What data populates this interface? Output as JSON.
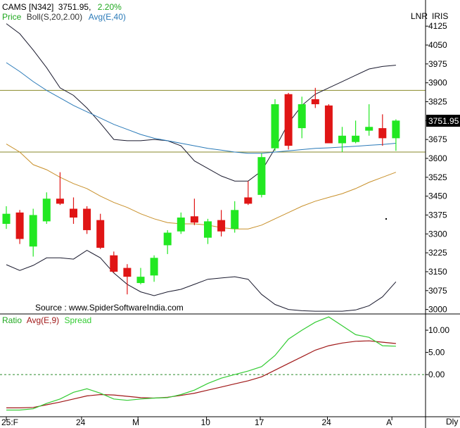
{
  "header": {
    "symbol": "CAMS [N342]",
    "last_price": "3751.95,",
    "change_pct": "2.20%",
    "legend_price": "Price",
    "legend_boll": "Boll(S,20,2.00)",
    "legend_avg": "Avg(E,40)",
    "right_label_1": "LNR",
    "right_label_2": "IRIS",
    "price_tag": "3751.95"
  },
  "source_text": "Source : www.SpiderSoftwareIndia.com",
  "lower_legend": {
    "ratio": "Ratio",
    "avg": "Avg(E,9)",
    "spread": "Spread"
  },
  "x_axis": {
    "labels": [
      {
        "text": "25:F",
        "index": 0
      },
      {
        "text": "24",
        "index": 5.6
      },
      {
        "text": "M",
        "index": 9.8
      },
      {
        "text": "10",
        "index": 14.9
      },
      {
        "text": "17",
        "index": 18.9
      },
      {
        "text": "24",
        "index": 23.9
      },
      {
        "text": "A",
        "index": 28.7
      }
    ],
    "period": "Dly"
  },
  "colors": {
    "up": "#22e822",
    "down": "#e01515",
    "boll": "#1a1a2e",
    "boll_mid": "#c8902a",
    "avg40": "#2a7ab8",
    "hline": "#8a8a2a",
    "ratio_avg": "#a01818",
    "spread": "#33cc33",
    "zero_line": "#2a8a2a",
    "accent_green": "#1fa81f",
    "accent_blue": "#2a7ab8"
  },
  "chart_data": [
    {
      "type": "candlestick",
      "title": "CAMS [N342]",
      "ylim": [
        2985,
        4145
      ],
      "y_ticks": [
        3000,
        3075,
        3150,
        3225,
        3300,
        3375,
        3450,
        3525,
        3600,
        3675,
        3750,
        3825,
        3900,
        3975,
        4050,
        4125
      ],
      "horizontal_lines": [
        3870,
        3625
      ],
      "candles": [
        {
          "o": 3340,
          "h": 3410,
          "l": 3320,
          "c": 3380
        },
        {
          "o": 3385,
          "h": 3395,
          "l": 3260,
          "c": 3280
        },
        {
          "o": 3250,
          "h": 3400,
          "l": 3210,
          "c": 3375
        },
        {
          "o": 3350,
          "h": 3465,
          "l": 3340,
          "c": 3440
        },
        {
          "o": 3440,
          "h": 3545,
          "l": 3415,
          "c": 3420
        },
        {
          "o": 3400,
          "h": 3445,
          "l": 3340,
          "c": 3365
        },
        {
          "o": 3400,
          "h": 3410,
          "l": 3300,
          "c": 3315
        },
        {
          "o": 3355,
          "h": 3380,
          "l": 3240,
          "c": 3245
        },
        {
          "o": 3215,
          "h": 3230,
          "l": 3145,
          "c": 3150
        },
        {
          "o": 3165,
          "h": 3180,
          "l": 3060,
          "c": 3130
        },
        {
          "o": 3105,
          "h": 3165,
          "l": 3100,
          "c": 3130
        },
        {
          "o": 3135,
          "h": 3215,
          "l": 3110,
          "c": 3205
        },
        {
          "o": 3255,
          "h": 3315,
          "l": 3220,
          "c": 3305
        },
        {
          "o": 3310,
          "h": 3385,
          "l": 3300,
          "c": 3365
        },
        {
          "o": 3370,
          "h": 3440,
          "l": 3335,
          "c": 3345
        },
        {
          "o": 3285,
          "h": 3360,
          "l": 3260,
          "c": 3350
        },
        {
          "o": 3355,
          "h": 3395,
          "l": 3290,
          "c": 3310
        },
        {
          "o": 3320,
          "h": 3430,
          "l": 3305,
          "c": 3395
        },
        {
          "o": 3445,
          "h": 3510,
          "l": 3415,
          "c": 3420
        },
        {
          "o": 3455,
          "h": 3620,
          "l": 3445,
          "c": 3605
        },
        {
          "o": 3640,
          "h": 3835,
          "l": 3630,
          "c": 3815
        },
        {
          "o": 3855,
          "h": 3860,
          "l": 3635,
          "c": 3650
        },
        {
          "o": 3720,
          "h": 3845,
          "l": 3680,
          "c": 3815
        },
        {
          "o": 3835,
          "h": 3880,
          "l": 3800,
          "c": 3815
        },
        {
          "o": 3810,
          "h": 3815,
          "l": 3660,
          "c": 3660
        },
        {
          "o": 3660,
          "h": 3725,
          "l": 3625,
          "c": 3690
        },
        {
          "o": 3665,
          "h": 3750,
          "l": 3660,
          "c": 3690
        },
        {
          "o": 3710,
          "h": 3815,
          "l": 3690,
          "c": 3725
        },
        {
          "o": 3720,
          "h": 3775,
          "l": 3650,
          "c": 3680
        },
        {
          "o": 3680,
          "h": 3755,
          "l": 3630,
          "c": 3750
        }
      ],
      "series": [
        {
          "name": "Boll(S,20,2.00)",
          "values": [
            4135,
            4095,
            4030,
            3960,
            3880,
            3850,
            3800,
            3740,
            3675,
            3670,
            3670,
            3675,
            3670,
            3650,
            3590,
            3560,
            3530,
            3510,
            3510,
            3550,
            3640,
            3740,
            3810,
            3855,
            3880,
            3905,
            3930,
            3955,
            3965,
            3970
          ]
        },
        {
          "name": "Boll(S,20,2.00)",
          "values": [
            3178,
            3155,
            3175,
            3205,
            3205,
            3200,
            3235,
            3205,
            3145,
            3100,
            3070,
            3055,
            3070,
            3080,
            3100,
            3120,
            3125,
            3130,
            3120,
            3060,
            3020,
            3000,
            2995,
            2993,
            2993,
            2993,
            2998,
            3015,
            3050,
            3110
          ]
        },
        {
          "name": "Boll(S,20,2.00)",
          "values": [
            3657,
            3625,
            3575,
            3555,
            3525,
            3500,
            3480,
            3450,
            3425,
            3405,
            3380,
            3360,
            3345,
            3340,
            3340,
            3335,
            3325,
            3320,
            3320,
            3335,
            3360,
            3385,
            3410,
            3430,
            3445,
            3460,
            3480,
            3505,
            3525,
            3545
          ]
        },
        {
          "name": "Avg(E,40)",
          "values": [
            3980,
            3945,
            3905,
            3870,
            3840,
            3810,
            3785,
            3760,
            3735,
            3715,
            3695,
            3680,
            3670,
            3660,
            3650,
            3640,
            3633,
            3625,
            3620,
            3620,
            3625,
            3630,
            3635,
            3640,
            3642,
            3645,
            3648,
            3652,
            3655,
            3660
          ]
        }
      ]
    },
    {
      "type": "line",
      "ylim": [
        -9.5,
        13.5
      ],
      "y_ticks": [
        0.0,
        5.0,
        10.0
      ],
      "y_tick_labels": [
        "0.00",
        "5.00",
        "10.00"
      ],
      "reference_line": 0,
      "series": [
        {
          "name": "Avg(E,9)",
          "values": [
            -7.5,
            -7.5,
            -7.4,
            -6.8,
            -6.2,
            -5.5,
            -4.8,
            -4.5,
            -4.6,
            -4.9,
            -5.2,
            -5.3,
            -5.1,
            -4.7,
            -4.2,
            -3.5,
            -2.8,
            -2.1,
            -1.4,
            -0.5,
            1.0,
            2.5,
            4.0,
            5.5,
            6.5,
            7.1,
            7.5,
            7.6,
            7.3,
            7.0
          ]
        },
        {
          "name": "Spread",
          "values": [
            -8.0,
            -8.0,
            -7.7,
            -6.5,
            -5.5,
            -4.0,
            -3.2,
            -4.2,
            -5.5,
            -5.8,
            -5.5,
            -5.3,
            -5.2,
            -4.5,
            -3.5,
            -2.0,
            -0.8,
            0.0,
            0.8,
            1.8,
            4.3,
            8.0,
            10.0,
            11.8,
            13.0,
            11.0,
            9.0,
            8.4,
            6.5,
            6.4
          ]
        }
      ]
    }
  ]
}
